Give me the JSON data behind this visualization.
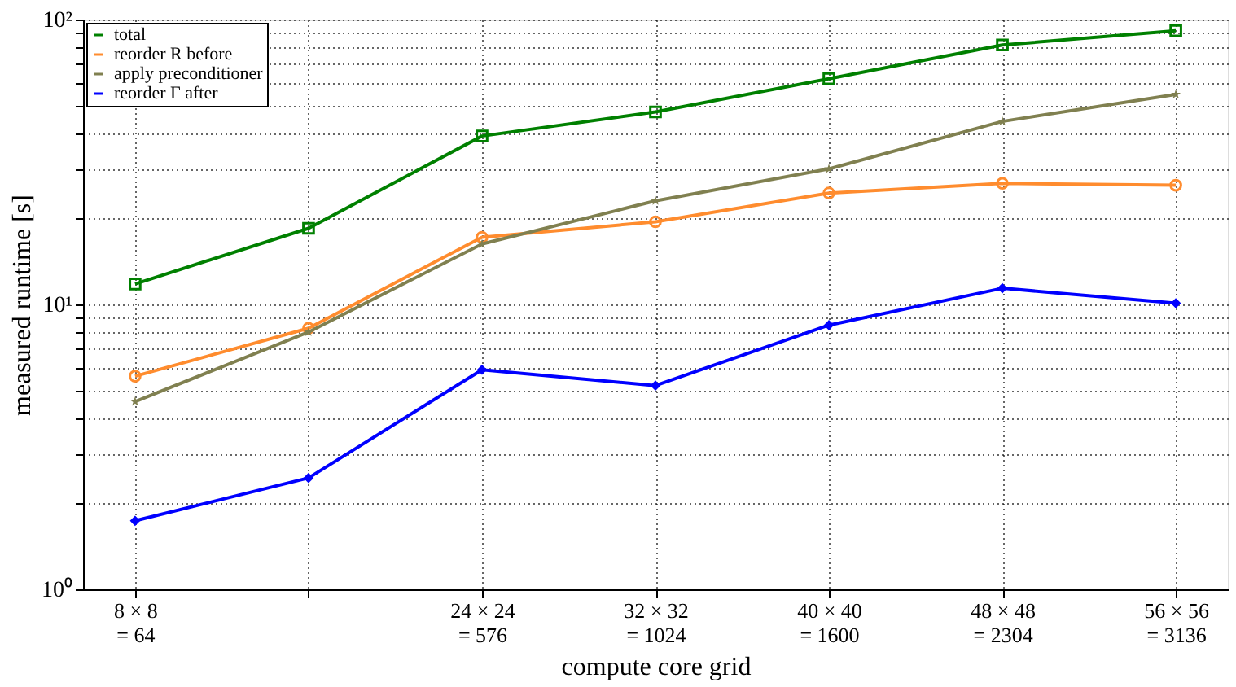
{
  "chart_data": {
    "type": "line",
    "xlabel": "compute core grid",
    "ylabel": "measured runtime [s]",
    "categories": [
      "8 × 8\n= 64",
      null,
      "24 × 24\n= 576",
      "32 × 32\n= 1024",
      "40 × 40\n= 1600",
      "48 × 48\n= 2304",
      "56 × 56\n= 3136"
    ],
    "log": "y",
    "ylim": [
      1,
      100
    ],
    "yticks": [
      {
        "value": 1,
        "label": "10⁰"
      },
      {
        "value": 2,
        "label": null
      },
      {
        "value": 3,
        "label": null
      },
      {
        "value": 4,
        "label": null
      },
      {
        "value": 5,
        "label": null
      },
      {
        "value": 6,
        "label": null
      },
      {
        "value": 7,
        "label": null
      },
      {
        "value": 8,
        "label": null
      },
      {
        "value": 9,
        "label": null
      },
      {
        "value": 10,
        "label": "10¹"
      },
      {
        "value": 20,
        "label": null
      },
      {
        "value": 30,
        "label": null
      },
      {
        "value": 40,
        "label": null
      },
      {
        "value": 50,
        "label": null
      },
      {
        "value": 60,
        "label": null
      },
      {
        "value": 70,
        "label": null
      },
      {
        "value": 80,
        "label": null
      },
      {
        "value": 90,
        "label": null
      },
      {
        "value": 100,
        "label": "10²"
      }
    ],
    "grid": true,
    "legend": "top left",
    "line_style": "solid",
    "series": [
      {
        "name": "total",
        "color": "#008000",
        "marker": "square",
        "values": [
          11.8,
          18.5,
          39,
          47.4,
          62,
          81.4,
          91.4
        ]
      },
      {
        "name": "reorder R before",
        "color": "#ff8c2e",
        "marker": "circle",
        "values": [
          5.6,
          8.25,
          17.2,
          19.5,
          24.6,
          26.6,
          26.2
        ]
      },
      {
        "name": "apply preconditioner",
        "color": "#808050",
        "marker": "star",
        "values": [
          4.56,
          8.0,
          16.3,
          23.1,
          29.9,
          43.9,
          54.6
        ]
      },
      {
        "name": "reorder Γ after",
        "color": "#0000ff",
        "marker": "diamond",
        "values": [
          1.74,
          2.46,
          5.9,
          5.19,
          8.46,
          11.4,
          10.1
        ]
      }
    ]
  }
}
